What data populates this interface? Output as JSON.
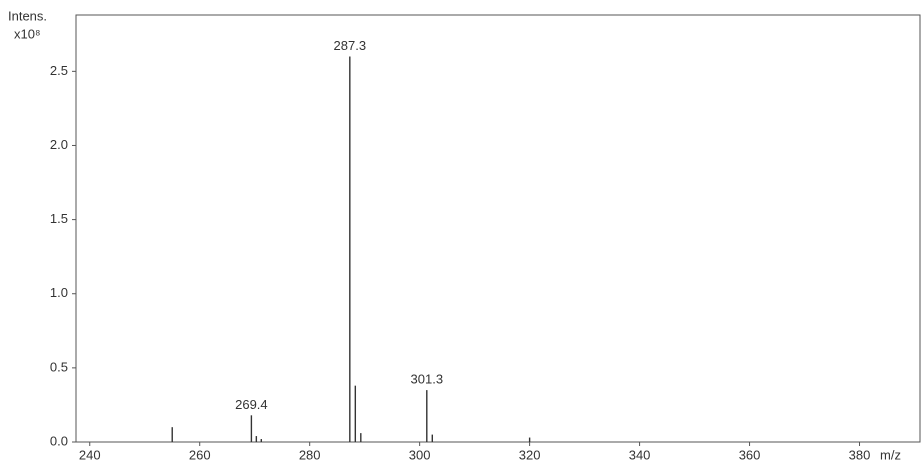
{
  "chart_data": {
    "type": "stick",
    "ylabel": "Intens.",
    "y_multiplier": "x10⁸",
    "xlabel": "m/z",
    "x": [
      255.0,
      269.4,
      270.3,
      271.2,
      287.3,
      288.3,
      289.3,
      301.3,
      302.3,
      320.0
    ],
    "values": [
      0.1,
      0.18,
      0.04,
      0.02,
      2.6,
      0.38,
      0.06,
      0.35,
      0.05,
      0.03
    ],
    "peak_labels": [
      null,
      "269.4",
      null,
      null,
      "287.3",
      null,
      null,
      "301.3",
      null,
      null
    ],
    "color": "#333333",
    "xlim": [
      237.5,
      391
    ],
    "ylim": [
      0,
      2.88
    ],
    "xticks": [
      240,
      260,
      280,
      300,
      320,
      340,
      360,
      380
    ],
    "yticks": [
      {
        "value": 0,
        "label": "0.0"
      },
      0.5,
      {
        "value": 1,
        "label": "1.0"
      },
      1.5,
      {
        "value": 2,
        "label": "2.0"
      },
      2.5
    ]
  }
}
